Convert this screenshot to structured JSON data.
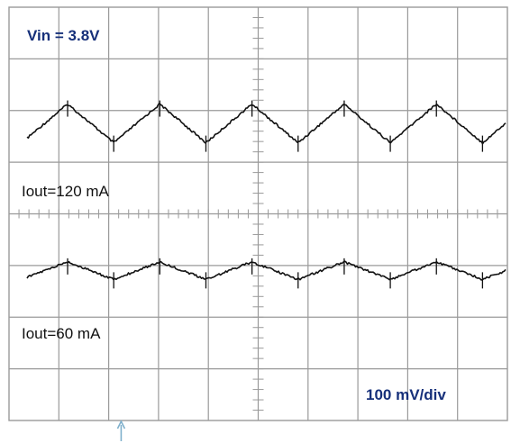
{
  "chart_data": {
    "type": "line",
    "title": "",
    "annotations": {
      "vin": "Vin = 3.8V",
      "iout_high": "Iout=120 mA",
      "iout_low": "Iout=60 mA",
      "scale": "100 mV/div"
    },
    "grid": true,
    "divisions": {
      "horizontal": 10,
      "vertical": 8
    },
    "series": [
      {
        "name": "Iout=120 mA",
        "waveform": "triangle",
        "peak_to_peak_mV": 75,
        "period_div": 1.85,
        "cycles_visible": 5.4
      },
      {
        "name": "Iout=60 mA",
        "waveform": "triangle",
        "peak_to_peak_mV": 34,
        "period_div": 1.85,
        "cycles_visible": 5.4
      }
    ]
  },
  "colors": {
    "background": "#ffffff",
    "grid": "#9a9a9a",
    "trace": "#111111",
    "annotation_blue": "#16307a",
    "trigger_marker": "#7fb0cc"
  }
}
